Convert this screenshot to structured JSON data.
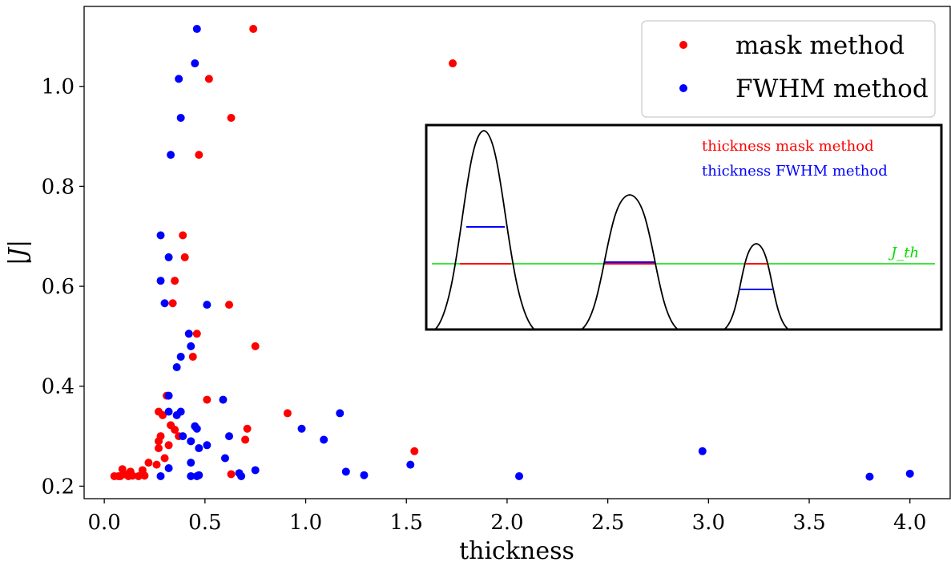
{
  "chart_data": {
    "type": "scatter",
    "title": "",
    "xlabel": "thickness",
    "ylabel": "|J|",
    "xlim": [
      -0.1,
      4.2
    ],
    "ylim": [
      0.175,
      1.16
    ],
    "xticks": [
      0.0,
      0.5,
      1.0,
      1.5,
      2.0,
      2.5,
      3.0,
      3.5,
      4.0
    ],
    "xtick_labels": [
      "0.0",
      "0.5",
      "1.0",
      "1.5",
      "2.0",
      "2.5",
      "3.0",
      "3.5",
      "4.0"
    ],
    "yticks": [
      0.2,
      0.4,
      0.6,
      0.8,
      1.0
    ],
    "ytick_labels": [
      "0.2",
      "0.4",
      "0.6",
      "0.8",
      "1.0"
    ],
    "grid": false,
    "legend_position": "top-right",
    "series": [
      {
        "name": "mask method",
        "color": "#ff0000",
        "points": [
          [
            0.74,
            1.115
          ],
          [
            1.73,
            1.046
          ],
          [
            0.52,
            1.015
          ],
          [
            0.63,
            0.937
          ],
          [
            0.47,
            0.863
          ],
          [
            0.39,
            0.702
          ],
          [
            0.4,
            0.658
          ],
          [
            0.35,
            0.611
          ],
          [
            0.34,
            0.566
          ],
          [
            0.62,
            0.563
          ],
          [
            0.46,
            0.505
          ],
          [
            0.75,
            0.48
          ],
          [
            0.44,
            0.459
          ],
          [
            0.31,
            0.381
          ],
          [
            0.51,
            0.373
          ],
          [
            0.27,
            0.349
          ],
          [
            0.91,
            0.346
          ],
          [
            0.29,
            0.342
          ],
          [
            0.33,
            0.322
          ],
          [
            0.35,
            0.313
          ],
          [
            0.71,
            0.315
          ],
          [
            0.28,
            0.3
          ],
          [
            0.37,
            0.3
          ],
          [
            0.7,
            0.293
          ],
          [
            0.27,
            0.29
          ],
          [
            0.32,
            0.282
          ],
          [
            0.27,
            0.276
          ],
          [
            1.54,
            0.27
          ],
          [
            0.3,
            0.256
          ],
          [
            0.22,
            0.247
          ],
          [
            0.26,
            0.243
          ],
          [
            0.09,
            0.234
          ],
          [
            0.19,
            0.232
          ],
          [
            0.13,
            0.229
          ],
          [
            0.1,
            0.224
          ],
          [
            0.63,
            0.224
          ],
          [
            0.05,
            0.22
          ],
          [
            0.07,
            0.22
          ],
          [
            0.08,
            0.22
          ],
          [
            0.12,
            0.22
          ],
          [
            0.14,
            0.221
          ],
          [
            0.17,
            0.22
          ],
          [
            0.2,
            0.221
          ]
        ]
      },
      {
        "name": "FWHM method",
        "color": "#0000ff",
        "points": [
          [
            0.46,
            1.115
          ],
          [
            0.45,
            1.046
          ],
          [
            0.37,
            1.015
          ],
          [
            0.38,
            0.937
          ],
          [
            0.33,
            0.863
          ],
          [
            0.28,
            0.702
          ],
          [
            0.32,
            0.658
          ],
          [
            0.28,
            0.611
          ],
          [
            0.3,
            0.566
          ],
          [
            0.51,
            0.563
          ],
          [
            0.42,
            0.505
          ],
          [
            0.43,
            0.48
          ],
          [
            0.38,
            0.459
          ],
          [
            0.36,
            0.438
          ],
          [
            0.32,
            0.381
          ],
          [
            0.59,
            0.373
          ],
          [
            0.32,
            0.349
          ],
          [
            0.38,
            0.349
          ],
          [
            1.17,
            0.346
          ],
          [
            0.36,
            0.342
          ],
          [
            0.45,
            0.32
          ],
          [
            0.46,
            0.315
          ],
          [
            0.98,
            0.315
          ],
          [
            0.39,
            0.3
          ],
          [
            0.62,
            0.3
          ],
          [
            1.09,
            0.293
          ],
          [
            0.43,
            0.29
          ],
          [
            0.51,
            0.282
          ],
          [
            0.47,
            0.276
          ],
          [
            2.97,
            0.27
          ],
          [
            0.6,
            0.256
          ],
          [
            0.43,
            0.247
          ],
          [
            1.52,
            0.243
          ],
          [
            0.32,
            0.236
          ],
          [
            0.75,
            0.232
          ],
          [
            1.2,
            0.229
          ],
          [
            0.67,
            0.226
          ],
          [
            0.28,
            0.22
          ],
          [
            0.43,
            0.22
          ],
          [
            0.46,
            0.22
          ],
          [
            0.47,
            0.222
          ],
          [
            0.68,
            0.22
          ],
          [
            1.29,
            0.222
          ],
          [
            2.06,
            0.22
          ],
          [
            3.8,
            0.219
          ],
          [
            4.0,
            0.225
          ]
        ]
      }
    ]
  },
  "inset": {
    "legend": [
      {
        "text": "thickness mask method",
        "color": "#ff0000"
      },
      {
        "text": "thickness FWHM method",
        "color": "#0000ff"
      }
    ],
    "threshold_label": "J_th",
    "threshold_color": "#00dd00"
  }
}
